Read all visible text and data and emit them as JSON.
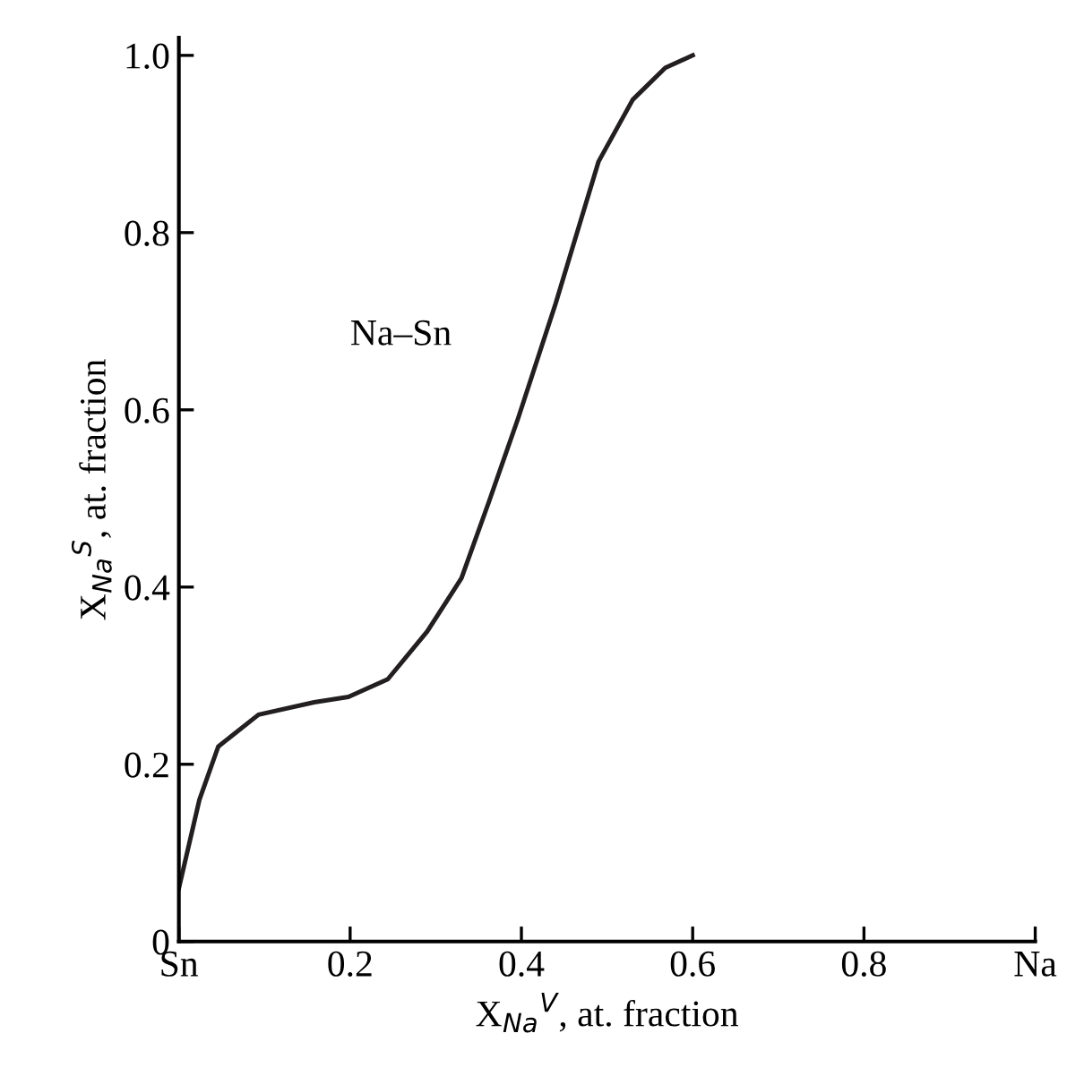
{
  "chart_data": {
    "type": "line",
    "xlabel": "X$_{Na}$$^{V}$, at. fraction",
    "ylabel": "X$_{Na}$$^{S}$, at. fraction",
    "annotations": [
      "Na–Sn"
    ],
    "x": [
      0,
      0.024,
      0.046,
      0.093,
      0.158,
      0.198,
      0.244,
      0.29,
      0.33,
      0.362,
      0.396,
      0.44,
      0.49,
      0.53,
      0.568,
      0.6
    ],
    "series": [
      {
        "color": "#231f20",
        "values": [
          0.06,
          0.16,
          0.22,
          0.256,
          0.27,
          0.276,
          0.296,
          0.35,
          0.41,
          0.496,
          0.59,
          0.72,
          0.88,
          0.95,
          0.986,
          1.0
        ]
      }
    ],
    "xlim": [
      0,
      1
    ],
    "ylim": [
      0,
      1.02
    ],
    "xticks": [
      {
        "value": 0,
        "label": "Sn"
      },
      0.2,
      0.4,
      0.6,
      0.8,
      {
        "value": 1,
        "label": "Na"
      }
    ],
    "yticks": [
      0,
      0.2,
      0.4,
      0.6,
      0.8,
      {
        "value": 1,
        "label": "1.0"
      }
    ],
    "grid": false,
    "legend": false,
    "marker": "none",
    "line_style": "solid"
  }
}
